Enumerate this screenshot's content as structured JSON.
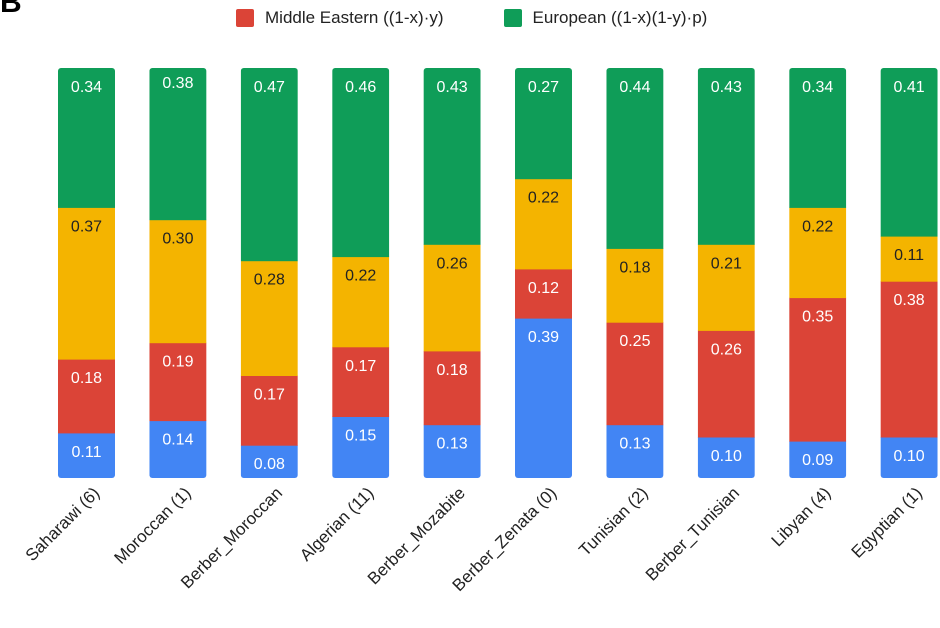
{
  "panel_label": "B",
  "legend": [
    {
      "label": "Middle Eastern ((1-x)·y)",
      "color": "#db4437"
    },
    {
      "label": "European ((1-x)(1-y)·p)",
      "color": "#0f9d58"
    }
  ],
  "colors": {
    "blue": "#4285f4",
    "red": "#db4437",
    "yellow": "#f4b400",
    "green": "#0f9d58"
  },
  "chart_data": {
    "type": "bar",
    "stacked": true,
    "categories": [
      "Saharawi (6)",
      "Moroccan (1)",
      "Berber_Moroccan",
      "Algerian (11)",
      "Berber_Mozabite",
      "Berber_Zenata (0)",
      "Tunisian (2)",
      "Berber_Tunisian",
      "Libyan (4)",
      "Egyptian (1)"
    ],
    "series": [
      {
        "color": "#4285f4",
        "values": [
          0.11,
          0.14,
          0.08,
          0.15,
          0.13,
          0.39,
          0.13,
          0.1,
          0.09,
          0.1
        ]
      },
      {
        "name": "Middle Eastern ((1-x)·y)",
        "color": "#db4437",
        "values": [
          0.18,
          0.19,
          0.17,
          0.17,
          0.18,
          0.12,
          0.25,
          0.26,
          0.35,
          0.38
        ]
      },
      {
        "color": "#f4b400",
        "values": [
          0.37,
          0.3,
          0.28,
          0.22,
          0.26,
          0.22,
          0.18,
          0.21,
          0.22,
          0.11
        ]
      },
      {
        "name": "European ((1-x)(1-y)·p)",
        "color": "#0f9d58",
        "values": [
          0.34,
          0.38,
          0.47,
          0.46,
          0.43,
          0.27,
          0.44,
          0.43,
          0.34,
          0.41
        ]
      }
    ],
    "labels": [
      [
        "0.11",
        "0.14",
        "0.08",
        "0.15",
        "0.13",
        "0.39",
        "0.13",
        "0.10",
        "0.09",
        "0.10"
      ],
      [
        "0.18",
        "0.19",
        "0.17",
        "0.17",
        "0.18",
        "0.12",
        "0.25",
        "0.26",
        "0.35",
        "0.38"
      ],
      [
        "0.37",
        "0.30",
        "0.28",
        "0.22",
        "0.26",
        "0.22",
        "0.18",
        "0.21",
        "0.22",
        "0.11"
      ],
      [
        "0.34",
        "0.38",
        "0.47",
        "0.46",
        "0.43",
        "0.27",
        "0.44",
        "0.43",
        "0.34",
        "0.41"
      ]
    ],
    "label_text_colors": [
      "#ffffff",
      "#ffffff",
      "#222222",
      "#ffffff"
    ],
    "ylim": [
      0,
      1
    ],
    "grid": false,
    "legend_position": "top"
  }
}
